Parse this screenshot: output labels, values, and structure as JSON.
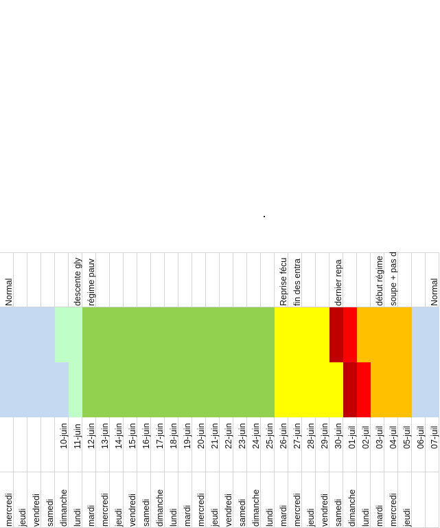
{
  "colors": {
    "normal": "#c5d9f1",
    "pre": "#bfffc7",
    "poor_diet": "#92d050",
    "yellow": "#ffff00",
    "dark_red": "#c00000",
    "red": "#ff0000",
    "orange": "#ffc000",
    "white": "#ffffff"
  },
  "notes": [
    {
      "text": "Normal",
      "col": 0
    },
    {
      "text": "descente gly",
      "col": 5
    },
    {
      "text": "régime pauv",
      "col": 6
    },
    {
      "text": "Reprise fécu",
      "col": 20
    },
    {
      "text": "fin des entra",
      "col": 21
    },
    {
      "text": "dernier repa",
      "col": 24
    },
    {
      "text": "début régime",
      "col": 27
    },
    {
      "text": "soupe + pas d",
      "col": 28
    },
    {
      "text": "Normal",
      "col": 31
    }
  ],
  "columns": [
    {
      "date": "",
      "day": "mercredi",
      "top": "normal",
      "bottom": "normal"
    },
    {
      "date": "",
      "day": "jeudi",
      "top": "normal",
      "bottom": "normal"
    },
    {
      "date": "",
      "day": "vendredi",
      "top": "normal",
      "bottom": "normal"
    },
    {
      "date": "",
      "day": "samedi",
      "top": "normal",
      "bottom": "normal"
    },
    {
      "date": "10-juin",
      "day": "dimanche",
      "top": "pre",
      "bottom": "normal"
    },
    {
      "date": "11-juin",
      "day": "lundi",
      "top": "pre",
      "bottom": "pre"
    },
    {
      "date": "12-juin",
      "day": "mardi",
      "top": "poor_diet",
      "bottom": "poor_diet"
    },
    {
      "date": "13-juin",
      "day": "mercredi",
      "top": "poor_diet",
      "bottom": "poor_diet"
    },
    {
      "date": "14-juin",
      "day": "jeudi",
      "top": "poor_diet",
      "bottom": "poor_diet"
    },
    {
      "date": "15-juin",
      "day": "vendredi",
      "top": "poor_diet",
      "bottom": "poor_diet"
    },
    {
      "date": "16-juin",
      "day": "samedi",
      "top": "poor_diet",
      "bottom": "poor_diet"
    },
    {
      "date": "17-juin",
      "day": "dimanche",
      "top": "poor_diet",
      "bottom": "poor_diet"
    },
    {
      "date": "18-juin",
      "day": "lundi",
      "top": "poor_diet",
      "bottom": "poor_diet"
    },
    {
      "date": "19-juin",
      "day": "mardi",
      "top": "poor_diet",
      "bottom": "poor_diet"
    },
    {
      "date": "20-juin",
      "day": "mercredi",
      "top": "poor_diet",
      "bottom": "poor_diet"
    },
    {
      "date": "21-juin",
      "day": "jeudi",
      "top": "poor_diet",
      "bottom": "poor_diet"
    },
    {
      "date": "22-juin",
      "day": "vendredi",
      "top": "poor_diet",
      "bottom": "poor_diet"
    },
    {
      "date": "23-juin",
      "day": "samedi",
      "top": "poor_diet",
      "bottom": "poor_diet"
    },
    {
      "date": "24-juin",
      "day": "dimanche",
      "top": "poor_diet",
      "bottom": "poor_diet"
    },
    {
      "date": "25-juin",
      "day": "lundi",
      "top": "poor_diet",
      "bottom": "poor_diet"
    },
    {
      "date": "26-juin",
      "day": "mardi",
      "top": "yellow",
      "bottom": "yellow"
    },
    {
      "date": "27-juin",
      "day": "mercredi",
      "top": "yellow",
      "bottom": "yellow"
    },
    {
      "date": "28-juin",
      "day": "jeudi",
      "top": "yellow",
      "bottom": "yellow"
    },
    {
      "date": "29-juin",
      "day": "vendredi",
      "top": "yellow",
      "bottom": "yellow"
    },
    {
      "date": "30-juin",
      "day": "samedi",
      "top": "dark_red",
      "bottom": "yellow"
    },
    {
      "date": "01-juil",
      "day": "dimanche",
      "top": "red",
      "bottom": "dark_red"
    },
    {
      "date": "02-juil",
      "day": "lundi",
      "top": "orange",
      "bottom": "red"
    },
    {
      "date": "03-juil",
      "day": "mardi",
      "top": "orange",
      "bottom": "orange"
    },
    {
      "date": "04-juil",
      "day": "mercredi",
      "top": "orange",
      "bottom": "orange"
    },
    {
      "date": "05-juil",
      "day": "jeudi",
      "top": "orange",
      "bottom": "orange"
    },
    {
      "date": "06-juil",
      "day": "",
      "top": "normal",
      "bottom": "normal"
    },
    {
      "date": "07-juil",
      "day": "",
      "top": "normal",
      "bottom": "normal"
    }
  ]
}
